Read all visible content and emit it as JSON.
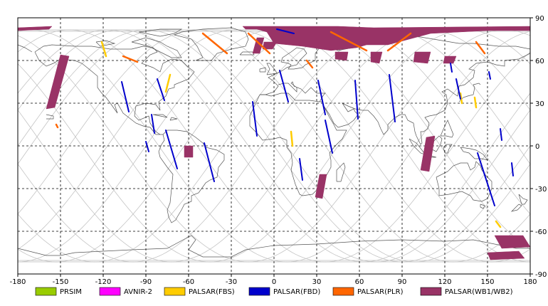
{
  "chart_data": {
    "type": "scatter",
    "xlim": [
      -180,
      180
    ],
    "ylim": [
      -90,
      90
    ],
    "x_ticks": [
      "-180",
      "-150",
      "-120",
      "-90",
      "-60",
      "-30",
      "0",
      "30",
      "60",
      "90",
      "120",
      "150",
      "180"
    ],
    "y_ticks": [
      "90",
      "60",
      "30",
      "0",
      "-30",
      "-60",
      "-90"
    ],
    "x_tick_values": [
      -180,
      -150,
      -120,
      -90,
      -60,
      -30,
      0,
      30,
      60,
      90,
      120,
      150,
      180
    ],
    "y_tick_values": [
      90,
      60,
      30,
      0,
      -30,
      -60,
      -90
    ],
    "grid": true,
    "legend_position": "bottom",
    "legend": [
      {
        "label": "PRSIM",
        "color": "#99cc00"
      },
      {
        "label": "AVNIR-2",
        "color": "#ff00ff"
      },
      {
        "label": "PALSAR(FBS)",
        "color": "#ffcc00"
      },
      {
        "label": "PALSAR(FBD)",
        "color": "#0000cc"
      },
      {
        "label": "PALSAR(PLR)",
        "color": "#ff6600"
      },
      {
        "label": "PALSAR(WB1/WB2)",
        "color": "#993366"
      }
    ],
    "fbs_strips": [
      [
        [
          -121,
          73
        ],
        [
          -118,
          63
        ]
      ],
      [
        [
          -73,
          50
        ],
        [
          -76,
          38
        ]
      ],
      [
        [
          12,
          10
        ],
        [
          13,
          0
        ]
      ],
      [
        [
          131,
          37
        ],
        [
          132,
          30
        ]
      ],
      [
        [
          141,
          34
        ],
        [
          142,
          27
        ]
      ],
      [
        [
          156,
          -53
        ],
        [
          159,
          -57
        ]
      ]
    ],
    "fbd_strips": [
      [
        [
          -107,
          45
        ],
        [
          -102,
          24
        ]
      ],
      [
        [
          -82,
          47
        ],
        [
          -77,
          32
        ]
      ],
      [
        [
          -86,
          22
        ],
        [
          -84,
          9
        ]
      ],
      [
        [
          -90,
          3
        ],
        [
          -88,
          -4
        ]
      ],
      [
        [
          -76,
          11
        ],
        [
          -68,
          -16
        ]
      ],
      [
        [
          -49,
          2
        ],
        [
          -42,
          -25
        ]
      ],
      [
        [
          -15,
          31
        ],
        [
          -12,
          7
        ]
      ],
      [
        [
          4,
          53
        ],
        [
          10,
          31
        ]
      ],
      [
        [
          31,
          46
        ],
        [
          36,
          22
        ]
      ],
      [
        [
          36,
          18
        ],
        [
          41,
          -5
        ]
      ],
      [
        [
          18,
          -9
        ],
        [
          20,
          -24
        ]
      ],
      [
        [
          57,
          46
        ],
        [
          59,
          19
        ]
      ],
      [
        [
          81,
          50
        ],
        [
          85,
          17
        ]
      ],
      [
        [
          124,
          58
        ],
        [
          125,
          52
        ]
      ],
      [
        [
          128,
          47
        ],
        [
          131,
          33
        ]
      ],
      [
        [
          151,
          52
        ],
        [
          152,
          47
        ]
      ],
      [
        [
          159,
          12
        ],
        [
          160,
          4
        ]
      ],
      [
        [
          143,
          -5
        ],
        [
          155,
          -42
        ]
      ],
      [
        [
          167,
          -12
        ],
        [
          168,
          -21
        ]
      ],
      [
        [
          2,
          82
        ],
        [
          14,
          79
        ]
      ]
    ],
    "plr_strips": [
      [
        [
          -50,
          79
        ],
        [
          -33,
          65
        ]
      ],
      [
        [
          -18,
          79
        ],
        [
          -3,
          65
        ]
      ],
      [
        [
          23,
          60
        ],
        [
          27,
          55
        ]
      ],
      [
        [
          40,
          80
        ],
        [
          65,
          67
        ]
      ],
      [
        [
          96,
          79
        ],
        [
          80,
          67
        ]
      ],
      [
        [
          142,
          73
        ],
        [
          148,
          65
        ]
      ],
      [
        [
          -106,
          63
        ],
        [
          -96,
          59
        ]
      ],
      [
        [
          -153,
          15
        ],
        [
          -152,
          13
        ]
      ]
    ],
    "wb_polygons": [
      [
        [
          -180,
          83
        ],
        [
          -156,
          84
        ],
        [
          -158,
          82
        ],
        [
          -180,
          81
        ]
      ],
      [
        [
          -150,
          64
        ],
        [
          -144,
          63
        ],
        [
          -154,
          27
        ],
        [
          -160,
          26
        ]
      ],
      [
        [
          -22,
          84
        ],
        [
          45,
          84
        ],
        [
          70,
          83
        ],
        [
          180,
          84
        ],
        [
          180,
          81
        ],
        [
          150,
          81
        ],
        [
          110,
          79
        ],
        [
          80,
          71
        ],
        [
          65,
          71
        ],
        [
          58,
          69
        ],
        [
          40,
          67
        ],
        [
          20,
          70
        ],
        [
          0,
          72
        ],
        [
          -5,
          80
        ],
        [
          -12,
          82
        ],
        [
          -20,
          82
        ]
      ],
      [
        [
          -12,
          76
        ],
        [
          -7,
          76
        ],
        [
          -10,
          65
        ],
        [
          -15,
          65
        ]
      ],
      [
        [
          -7,
          73
        ],
        [
          2,
          73
        ],
        [
          -1,
          68
        ],
        [
          -8,
          68
        ]
      ],
      [
        [
          43,
          66
        ],
        [
          52,
          66
        ],
        [
          51,
          60
        ],
        [
          43,
          61
        ]
      ],
      [
        [
          68,
          66
        ],
        [
          76,
          66
        ],
        [
          74,
          58
        ],
        [
          68,
          59
        ]
      ],
      [
        [
          99,
          66
        ],
        [
          110,
          66
        ],
        [
          108,
          58
        ],
        [
          98,
          59
        ]
      ],
      [
        [
          120,
          63
        ],
        [
          128,
          63
        ],
        [
          126,
          58
        ],
        [
          119,
          58
        ]
      ],
      [
        [
          107,
          6
        ],
        [
          113,
          7
        ],
        [
          109,
          -18
        ],
        [
          103,
          -17
        ]
      ],
      [
        [
          -63,
          0
        ],
        [
          -57,
          0
        ],
        [
          -57,
          -8
        ],
        [
          -63,
          -8
        ]
      ],
      [
        [
          32,
          -20
        ],
        [
          37,
          -20
        ],
        [
          34,
          -37
        ],
        [
          29,
          -36
        ]
      ],
      [
        [
          155,
          -63
        ],
        [
          175,
          -63
        ],
        [
          180,
          -71
        ],
        [
          160,
          -72
        ]
      ],
      [
        [
          150,
          -75
        ],
        [
          172,
          -74
        ],
        [
          176,
          -79
        ],
        [
          152,
          -80
        ]
      ]
    ],
    "orbit_phase_offsets": [
      -198,
      -171,
      -144,
      -117,
      -90,
      -63,
      -36,
      -9,
      18,
      45,
      72,
      99,
      126,
      153,
      180
    ]
  }
}
